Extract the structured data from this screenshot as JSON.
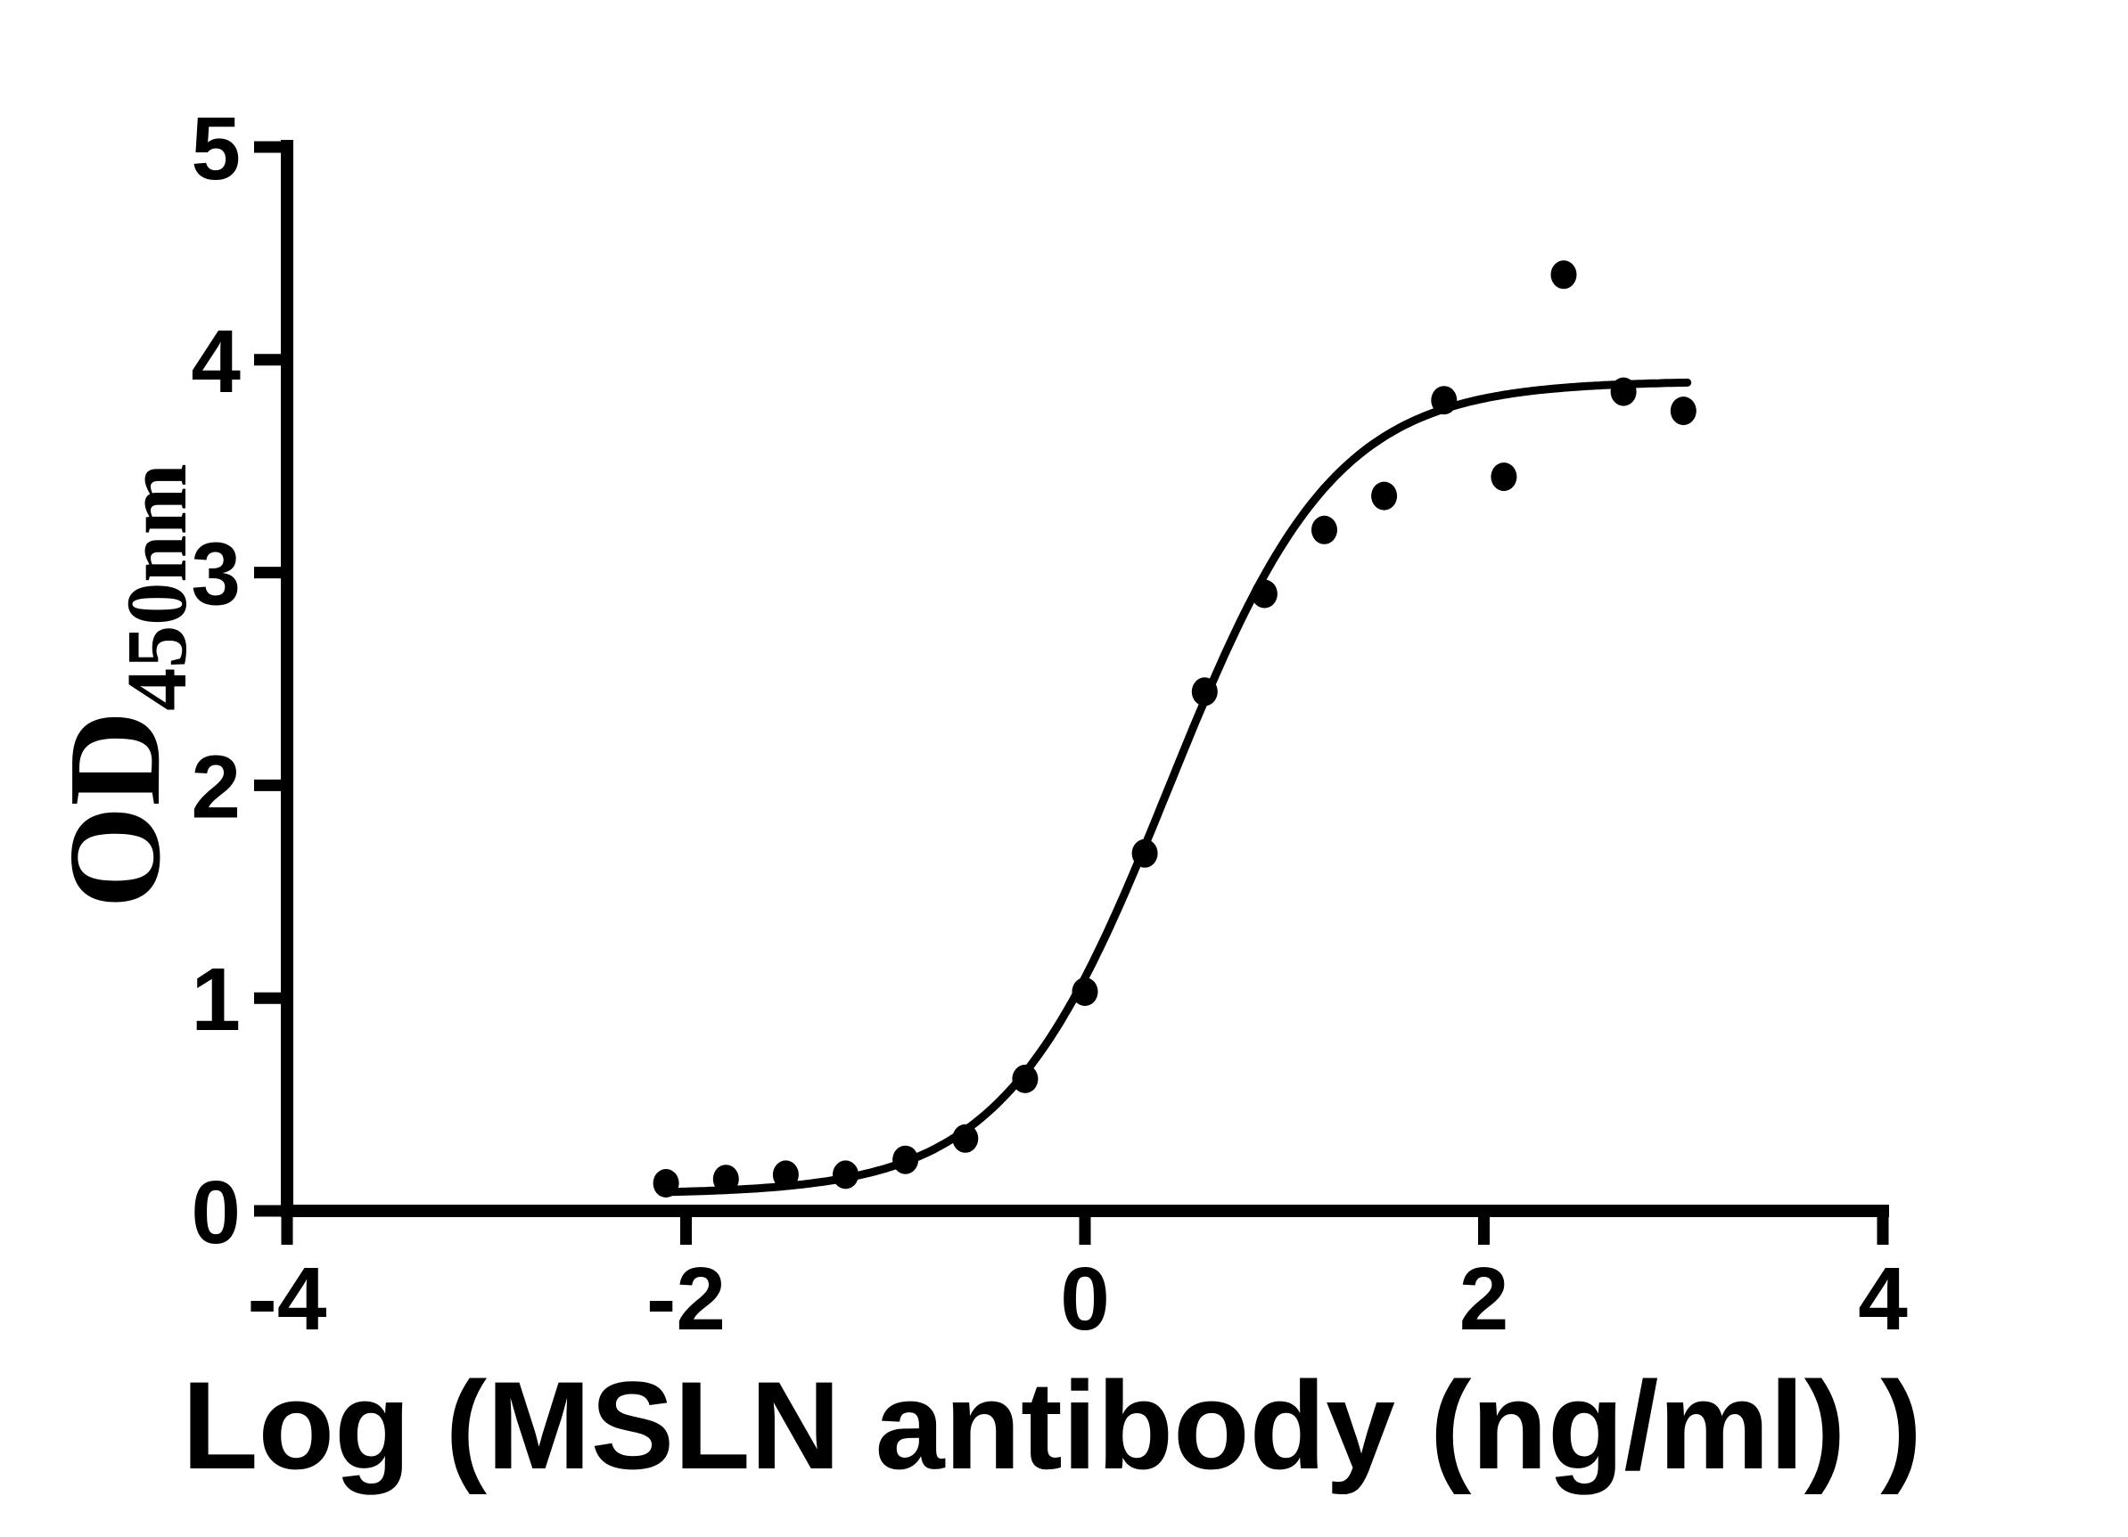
{
  "figure": {
    "background_color": "#ffffff",
    "ink_color": "#000000"
  },
  "chart_data": {
    "type": "scatter",
    "title": "",
    "xlabel": "Log (MSLN antibody (ng/ml) )",
    "ylabel": "OD",
    "ylabel_subscript": "450nm",
    "xlim": [
      -4,
      4
    ],
    "ylim": [
      0,
      5
    ],
    "x_ticks": [
      -4,
      -2,
      0,
      2,
      4
    ],
    "y_ticks": [
      0,
      1,
      2,
      3,
      4,
      5
    ],
    "grid": false,
    "legend_position": "none",
    "marker_style": "filled-circle",
    "marker_color": "#000000",
    "curve_color": "#000000",
    "points": [
      [
        -2.1,
        0.13
      ],
      [
        -1.8,
        0.15
      ],
      [
        -1.5,
        0.17
      ],
      [
        -1.2,
        0.17
      ],
      [
        -0.9,
        0.24
      ],
      [
        -0.6,
        0.34
      ],
      [
        -0.3,
        0.62
      ],
      [
        0.0,
        1.03
      ],
      [
        0.3,
        1.68
      ],
      [
        0.6,
        2.44
      ],
      [
        0.9,
        2.9
      ],
      [
        1.2,
        3.2
      ],
      [
        1.5,
        3.36
      ],
      [
        1.8,
        3.81
      ],
      [
        2.1,
        3.45
      ],
      [
        2.4,
        4.4
      ],
      [
        2.7,
        3.85
      ],
      [
        3.0,
        3.76
      ]
    ],
    "fit_curve": {
      "model": "4PL-logistic",
      "bottom": 0.08,
      "top": 3.9,
      "log_ec50": 0.42,
      "hill_slope": 1.05,
      "x_range": [
        -2.12,
        3.02
      ]
    }
  }
}
